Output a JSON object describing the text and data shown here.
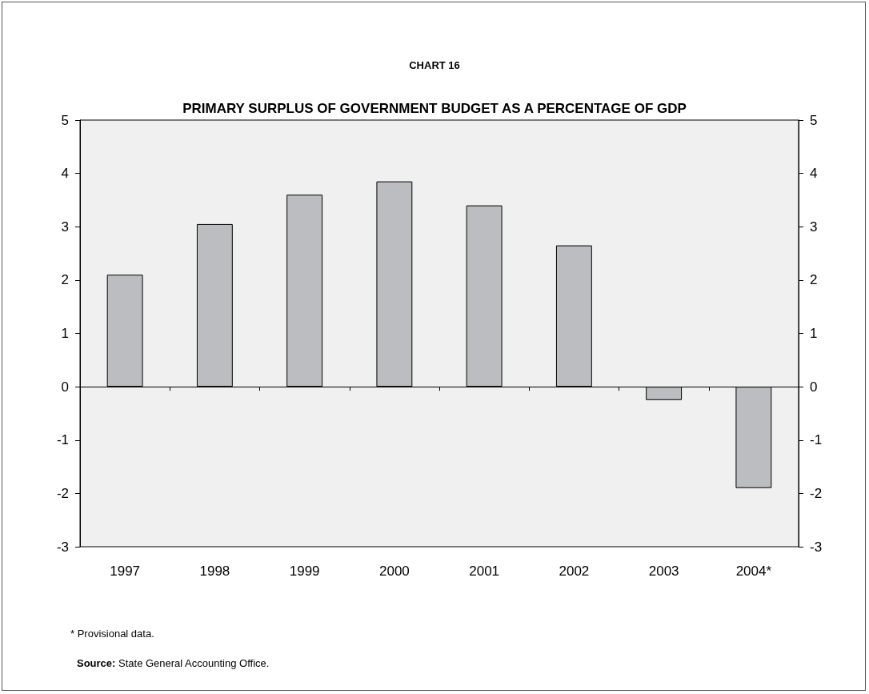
{
  "chart_data": {
    "type": "bar",
    "title": "CHART 16",
    "subtitle": "PRIMARY SURPLUS OF GOVERNMENT BUDGET AS A PERCENTAGE OF GDP",
    "categories": [
      "1997",
      "1998",
      "1999",
      "2000",
      "2001",
      "2002",
      "2003",
      "2004*"
    ],
    "values": [
      2.1,
      3.05,
      3.6,
      3.85,
      3.4,
      2.65,
      -0.25,
      -1.9
    ],
    "color": "#bcbdc1",
    "ylim": [
      -3,
      5
    ],
    "yticks": [
      -3,
      -2,
      -1,
      0,
      1,
      2,
      3,
      4,
      5
    ],
    "y2lim": [
      -3,
      5
    ],
    "y2ticks": [
      -3,
      -2,
      -1,
      0,
      1,
      2,
      3,
      4,
      5
    ],
    "annotations": [
      "* Provisional data.",
      "Source: State General Accounting Office."
    ]
  }
}
